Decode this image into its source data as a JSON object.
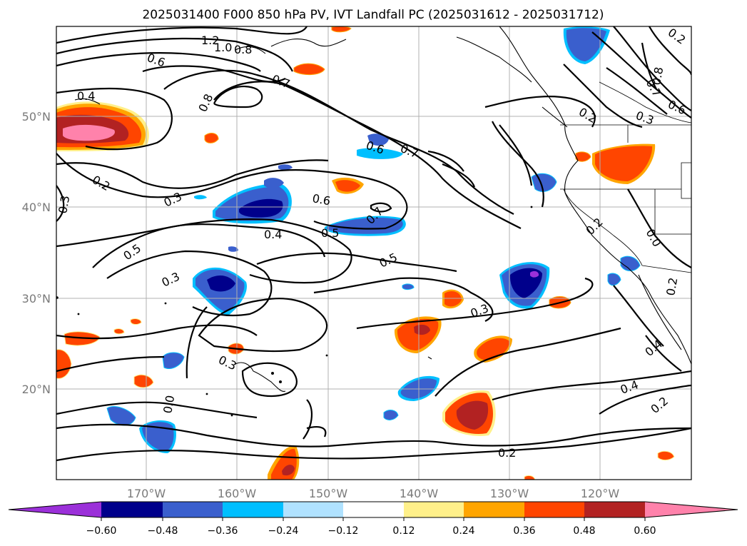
{
  "title": "2025031400 F000 850 hPa PV, IVT Landfall PC (2025031612 - 2025031712)",
  "map": {
    "lon_range": [
      180,
      110
    ],
    "lat_range": [
      10,
      60
    ],
    "lon_ticks": [
      "170°W",
      "160°W",
      "150°W",
      "140°W",
      "130°W",
      "120°W"
    ],
    "lat_ticks": [
      "50°N",
      "40°N",
      "30°N",
      "20°N"
    ],
    "gridlines": true
  },
  "contour_labels": [
    "1.2",
    "1.0",
    "0.8",
    "0.6",
    "0.4",
    "0.7",
    "0.8",
    "0.6",
    "0.7",
    "0.8",
    "0.7",
    "0.6",
    "0.3",
    "0.2",
    "0.3",
    "0.6",
    "0.5",
    "0.4",
    "0.7",
    "0.2",
    "0.5",
    "0.3",
    "0.5",
    "0.3",
    "0.3",
    "0.4",
    "0.2",
    "0.4",
    "0.2",
    "0.2",
    "0.3",
    "0.0",
    "0.2",
    "0.2",
    "0.0"
  ],
  "colorbar": {
    "ticks": [
      "−0.60",
      "−0.48",
      "−0.36",
      "−0.24",
      "−0.12",
      "0.12",
      "0.24",
      "0.36",
      "0.48",
      "0.60"
    ],
    "colors": {
      "under": "#9b30d9",
      "b1": "#00008b",
      "b2": "#3a5fcd",
      "b3": "#00bfff",
      "b4": "#b0e2ff",
      "b5": "#ffffff",
      "b6": "#fff08a",
      "b7": "#ffa500",
      "b8": "#ff4500",
      "b9": "#b22222",
      "over": "#ff82ab"
    }
  }
}
